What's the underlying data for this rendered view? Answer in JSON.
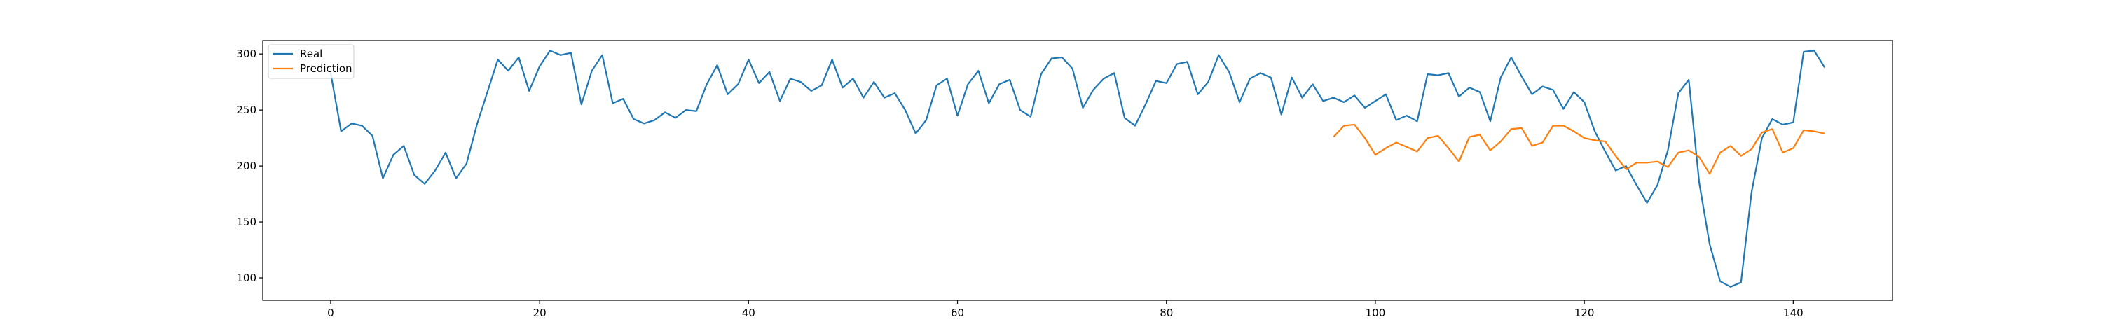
{
  "chart_data": {
    "type": "line",
    "title": "",
    "xlabel": "",
    "ylabel": "",
    "xlim": [
      -6.5,
      149.5
    ],
    "ylim": [
      80,
      312
    ],
    "xticks": [
      0,
      20,
      40,
      60,
      80,
      100,
      120,
      140
    ],
    "yticks": [
      100,
      150,
      200,
      250,
      300
    ],
    "grid": false,
    "legend_position": "upper-left",
    "series": [
      {
        "name": "Real",
        "color": "#1f77b4",
        "x_start": 0,
        "values": [
          283,
          231,
          238,
          236,
          227,
          189,
          210,
          218,
          192,
          184,
          196,
          212,
          189,
          202,
          237,
          266,
          295,
          285,
          297,
          267,
          289,
          303,
          299,
          301,
          255,
          285,
          299,
          256,
          260,
          242,
          238,
          241,
          248,
          243,
          250,
          249,
          273,
          290,
          264,
          273,
          295,
          274,
          284,
          258,
          278,
          275,
          267,
          272,
          295,
          270,
          278,
          261,
          275,
          261,
          265,
          250,
          229,
          241,
          272,
          278,
          245,
          273,
          285,
          256,
          273,
          277,
          250,
          244,
          282,
          296,
          297,
          287,
          252,
          268,
          278,
          283,
          243,
          236,
          255,
          276,
          274,
          291,
          293,
          264,
          275,
          299,
          284,
          257,
          278,
          283,
          279,
          246,
          279,
          261,
          273,
          258,
          261,
          257,
          263,
          252,
          258,
          264,
          241,
          245,
          240,
          282,
          281,
          283,
          262,
          270,
          266,
          240,
          279,
          297,
          280,
          264,
          271,
          268,
          251,
          266,
          257,
          231,
          213,
          196,
          200,
          183,
          167,
          183,
          214,
          265,
          277,
          185,
          130,
          97,
          92,
          96,
          176,
          225,
          242,
          237,
          239,
          302,
          303,
          288
        ]
      },
      {
        "name": "Prediction",
        "color": "#ff7f0e",
        "x_start": 96,
        "values": [
          226,
          236,
          237,
          225,
          210,
          216,
          221,
          217,
          213,
          225,
          227,
          216,
          204,
          226,
          228,
          214,
          222,
          233,
          234,
          218,
          221,
          236,
          236,
          231,
          225,
          223,
          222,
          209,
          197,
          203,
          203,
          204,
          199,
          212,
          214,
          208,
          193,
          212,
          218,
          209,
          215,
          230,
          233,
          212,
          216,
          232,
          231,
          229
        ]
      }
    ]
  }
}
